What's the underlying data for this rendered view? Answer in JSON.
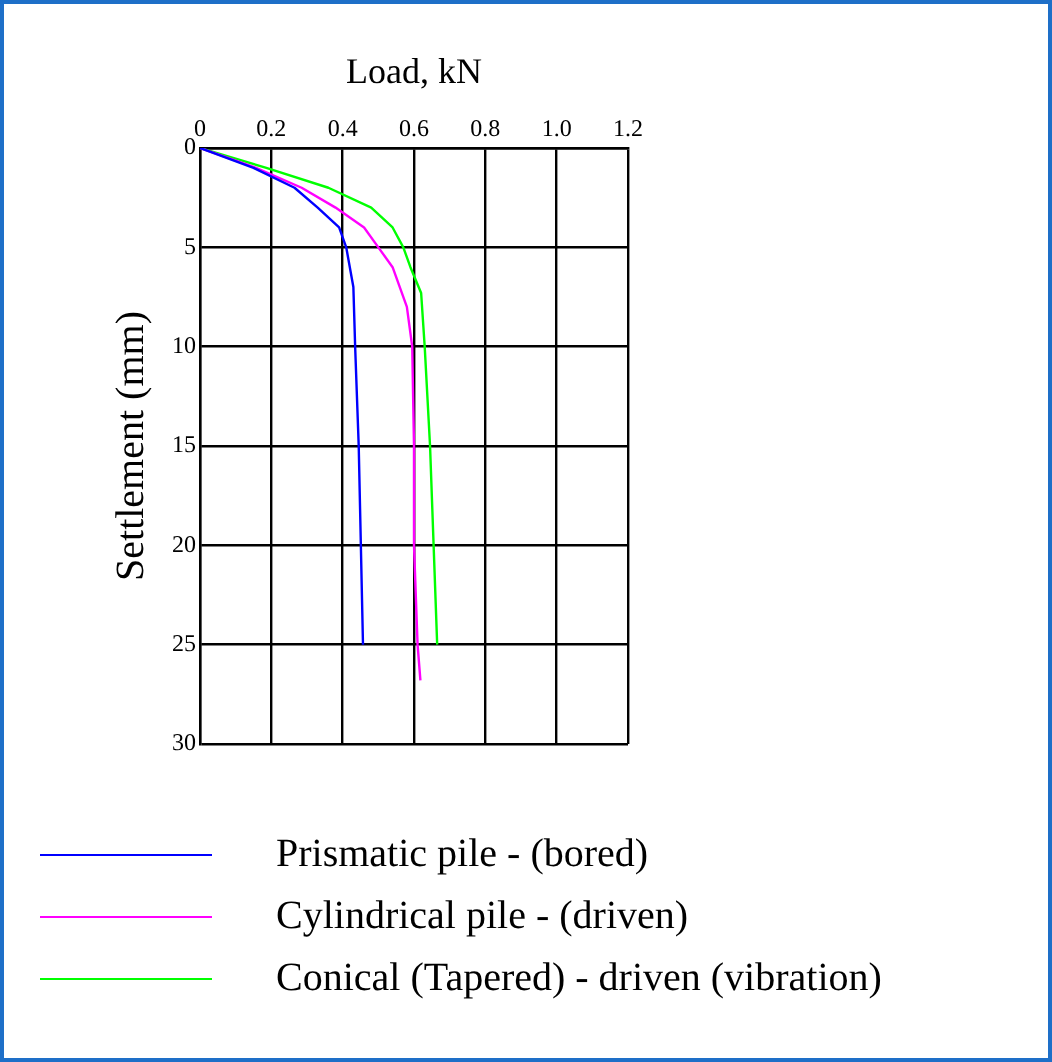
{
  "chart_data": {
    "type": "line",
    "xlabel": "Load, kN",
    "ylabel": "Settlement (mm)",
    "xlim": [
      0,
      1.2
    ],
    "xticks": [
      0,
      0.2,
      0.4,
      0.6,
      0.8,
      {
        "value": 1,
        "label": "1.0"
      },
      1.2
    ],
    "ylim": [
      30,
      0
    ],
    "yticks": [
      0,
      5,
      10,
      15,
      20,
      25,
      30
    ],
    "grid": true,
    "legend": "bottom",
    "marker": "none",
    "line_style": "solid",
    "series": [
      {
        "name": "Prismatic pile - (bored)",
        "color": "#0000ff",
        "x": [
          0,
          0.15,
          0.265,
          0.33,
          0.39,
          0.41,
          0.43,
          0.435,
          0.445,
          0.457
        ],
        "values": [
          0,
          1,
          2,
          3,
          4,
          5,
          7,
          10,
          15,
          25
        ]
      },
      {
        "name": "Cylindrical pile - (driven)",
        "color": "#ff00ff",
        "x": [
          0,
          0.157,
          0.285,
          0.38,
          0.46,
          0.5,
          0.54,
          0.58,
          0.595,
          0.6,
          0.6,
          0.61,
          0.618
        ],
        "values": [
          0,
          1,
          2,
          3,
          4,
          5,
          6,
          8,
          10,
          15,
          20,
          25,
          26.8
        ]
      },
      {
        "name": "Conical (Tapered) - driven (vibration)",
        "color": "#00ff00",
        "x": [
          0,
          0.186,
          0.36,
          0.48,
          0.54,
          0.57,
          0.59,
          0.62,
          0.63,
          0.645,
          0.655,
          0.665
        ],
        "values": [
          0,
          1,
          2,
          3,
          4,
          5,
          6,
          7.3,
          10,
          15,
          20,
          25
        ]
      }
    ]
  }
}
